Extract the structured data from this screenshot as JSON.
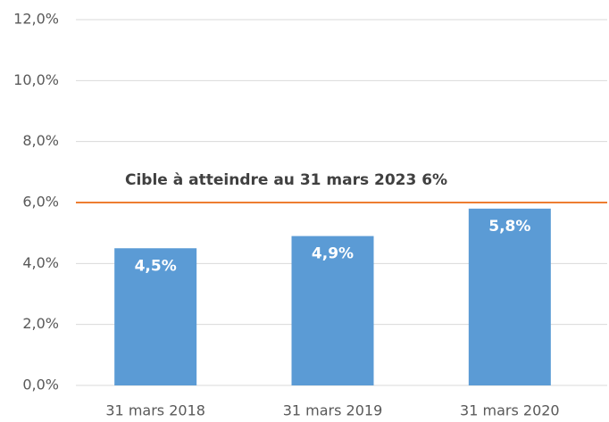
{
  "chart_data": {
    "type": "bar",
    "categories": [
      "31 mars 2018",
      "31 mars 2019",
      "31 mars 2020"
    ],
    "values": [
      4.5,
      4.9,
      5.8
    ],
    "value_labels": [
      "4,5%",
      "4,9%",
      "5,8%"
    ],
    "color": "#5b9bd5",
    "ylim": [
      0,
      12
    ],
    "yticks": [
      {
        "value": 0,
        "label": "0,0%"
      },
      {
        "value": 2,
        "label": "2,0%"
      },
      {
        "value": 4,
        "label": "4,0%"
      },
      {
        "value": 6,
        "label": "6,0%"
      },
      {
        "value": 8,
        "label": "8,0%"
      },
      {
        "value": 10,
        "label": "10,0%"
      },
      {
        "value": 12,
        "label": "12,0%"
      }
    ],
    "grid": true,
    "reference_line": {
      "value": 6,
      "label": "Cible à atteindre au 31 mars 2023 6%",
      "color": "#ed7d31"
    }
  }
}
